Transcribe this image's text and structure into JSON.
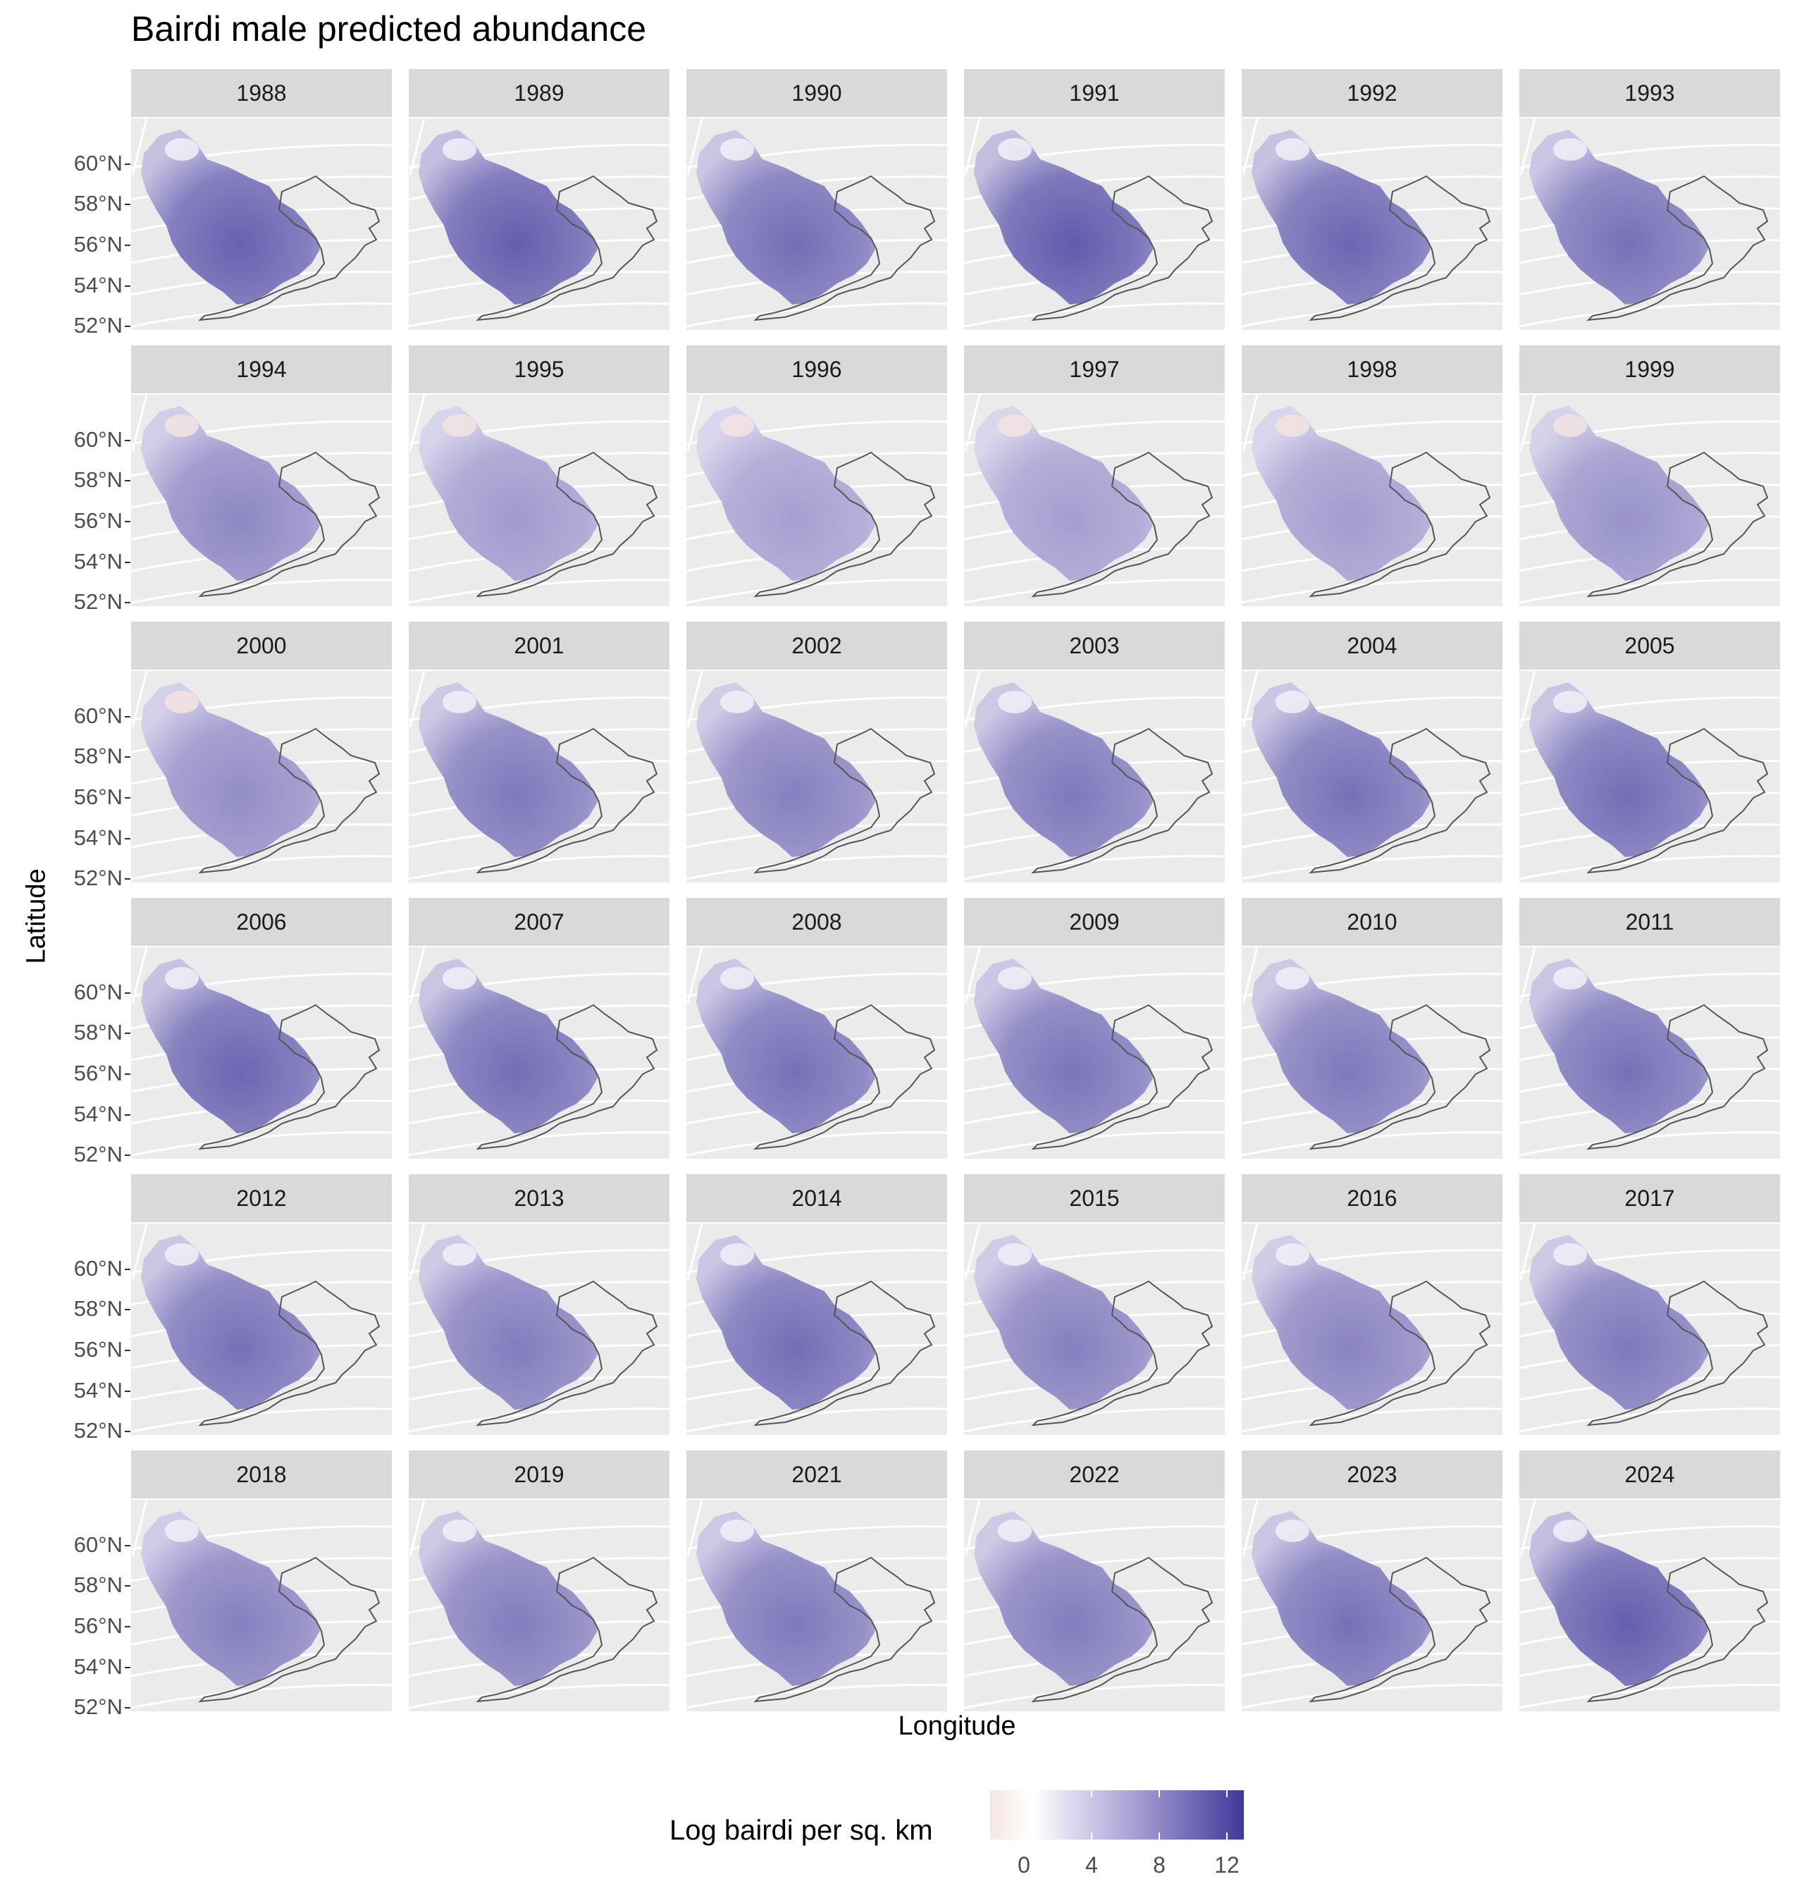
{
  "title": "Bairdi male predicted abundance",
  "xlabel": "Longitude",
  "ylabel": "Latitude",
  "y_ticks": [
    "60°N",
    "58°N",
    "56°N",
    "54°N",
    "52°N"
  ],
  "legend": {
    "title": "Log bairdi per sq. km",
    "ticks": [
      "0",
      "4",
      "8",
      "12"
    ],
    "tick_values": [
      0,
      4,
      8,
      12
    ],
    "range": [
      -2,
      13
    ],
    "colors": {
      "low": "#f7e6e0",
      "mid": "#ffffff",
      "high": "#41389a"
    }
  },
  "panels": [
    {
      "year": "1988",
      "intensity": 0.78
    },
    {
      "year": "1989",
      "intensity": 0.8
    },
    {
      "year": "1990",
      "intensity": 0.72
    },
    {
      "year": "1991",
      "intensity": 0.82
    },
    {
      "year": "1992",
      "intensity": 0.76
    },
    {
      "year": "1993",
      "intensity": 0.7
    },
    {
      "year": "1994",
      "intensity": 0.58
    },
    {
      "year": "1995",
      "intensity": 0.48
    },
    {
      "year": "1996",
      "intensity": 0.45
    },
    {
      "year": "1997",
      "intensity": 0.46
    },
    {
      "year": "1998",
      "intensity": 0.47
    },
    {
      "year": "1999",
      "intensity": 0.52
    },
    {
      "year": "2000",
      "intensity": 0.55
    },
    {
      "year": "2001",
      "intensity": 0.66
    },
    {
      "year": "2002",
      "intensity": 0.62
    },
    {
      "year": "2003",
      "intensity": 0.66
    },
    {
      "year": "2004",
      "intensity": 0.7
    },
    {
      "year": "2005",
      "intensity": 0.72
    },
    {
      "year": "2006",
      "intensity": 0.76
    },
    {
      "year": "2007",
      "intensity": 0.72
    },
    {
      "year": "2008",
      "intensity": 0.7
    },
    {
      "year": "2009",
      "intensity": 0.68
    },
    {
      "year": "2010",
      "intensity": 0.66
    },
    {
      "year": "2011",
      "intensity": 0.7
    },
    {
      "year": "2012",
      "intensity": 0.7
    },
    {
      "year": "2013",
      "intensity": 0.64
    },
    {
      "year": "2014",
      "intensity": 0.72
    },
    {
      "year": "2015",
      "intensity": 0.62
    },
    {
      "year": "2016",
      "intensity": 0.6
    },
    {
      "year": "2017",
      "intensity": 0.66
    },
    {
      "year": "2018",
      "intensity": 0.62
    },
    {
      "year": "2019",
      "intensity": 0.64
    },
    {
      "year": "2021",
      "intensity": 0.66
    },
    {
      "year": "2022",
      "intensity": 0.64
    },
    {
      "year": "2023",
      "intensity": 0.7
    },
    {
      "year": "2024",
      "intensity": 0.8
    }
  ]
}
